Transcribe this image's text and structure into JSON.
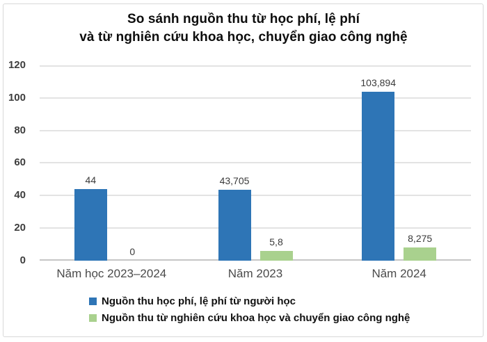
{
  "chart_data": {
    "type": "bar",
    "title": "So sánh nguồn thu từ học phí, lệ phí và từ nghiên cứu khoa học, chuyển giao công nghệ",
    "title_line1": "So sánh nguồn thu từ học phí, lệ phí",
    "title_line2": "và từ nghiên cứu khoa học, chuyển giao công nghệ",
    "categories": [
      "Năm học 2023–2024",
      "Năm 2023",
      "Năm 2024"
    ],
    "series": [
      {
        "name": "Nguồn thu học phí, lệ phí từ người học",
        "color": "#2E75B6",
        "values": [
          44,
          43.705,
          103.894
        ],
        "labels": [
          "44",
          "43,705",
          "103,894"
        ]
      },
      {
        "name": "Nguồn thu từ nghiên cứu khoa học và chuyển giao công nghệ",
        "color": "#A9D18E",
        "values": [
          0,
          5.8,
          8.275
        ],
        "labels": [
          "0",
          "5,8",
          "8,275"
        ]
      }
    ],
    "ylim": [
      0,
      120
    ],
    "yticks": [
      0,
      20,
      40,
      60,
      80,
      100,
      120
    ],
    "grid": true,
    "legend_position": "bottom-left",
    "colors": {
      "grid": "#e3e3e3",
      "axis_line": "#c6c6c6",
      "border": "#d8d8d8"
    }
  }
}
